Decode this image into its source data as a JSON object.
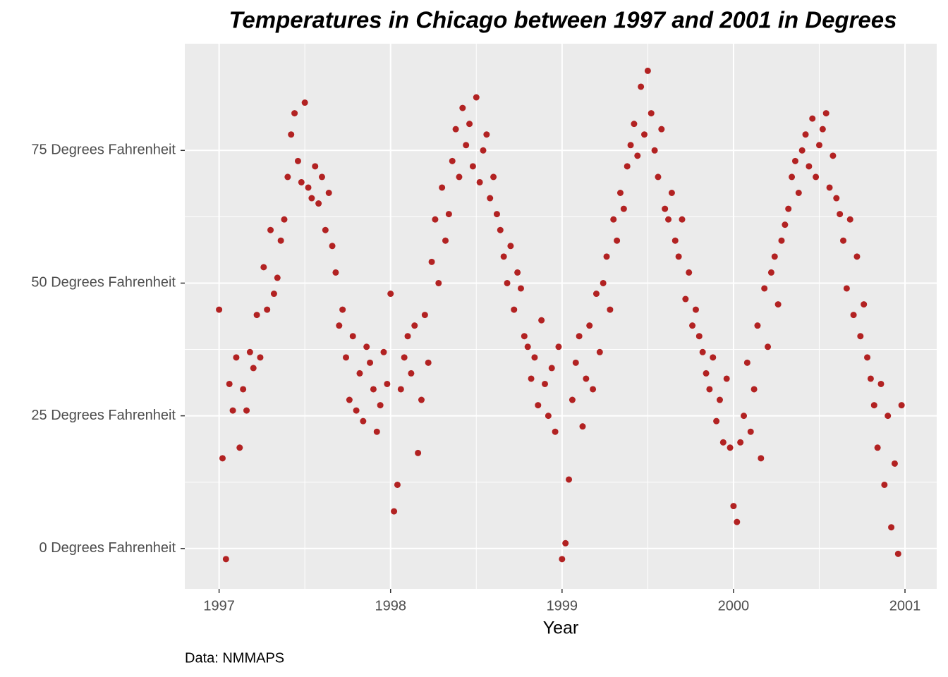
{
  "chart_data": {
    "type": "scatter",
    "title": "Temperatures in Chicago between 1997 and 2001 in Degrees",
    "x_label": "Year",
    "caption": "Data: NMMAPS",
    "color": "#b22222",
    "grid": true,
    "xlim": [
      1996.8,
      2001.185
    ],
    "ylim": [
      -7.6,
      95.1
    ],
    "xticks": [
      1997,
      1998,
      1999,
      2000,
      2001
    ],
    "yticks": [
      {
        "value": 0,
        "label": "0 Degrees Fahrenheit"
      },
      {
        "value": 25,
        "label": "25 Degrees Fahrenheit"
      },
      {
        "value": 50,
        "label": "50 Degrees Fahrenheit"
      },
      {
        "value": 75,
        "label": "75 Degrees Fahrenheit"
      }
    ],
    "x": [
      1997.0,
      1997.02,
      1997.04,
      1997.06,
      1997.08,
      1997.1,
      1997.12,
      1997.14,
      1997.16,
      1997.18,
      1997.2,
      1997.22,
      1997.24,
      1997.26,
      1997.28,
      1997.3,
      1997.32,
      1997.34,
      1997.36,
      1997.38,
      1997.4,
      1997.42,
      1997.44,
      1997.46,
      1997.48,
      1997.5,
      1997.52,
      1997.54,
      1997.56,
      1997.58,
      1997.6,
      1997.62,
      1997.64,
      1997.66,
      1997.68,
      1997.7,
      1997.72,
      1997.74,
      1997.76,
      1997.78,
      1997.8,
      1997.82,
      1997.84,
      1997.86,
      1997.88,
      1997.9,
      1997.92,
      1997.94,
      1997.96,
      1997.98,
      1998.0,
      1998.02,
      1998.04,
      1998.06,
      1998.08,
      1998.1,
      1998.12,
      1998.14,
      1998.16,
      1998.18,
      1998.2,
      1998.22,
      1998.24,
      1998.26,
      1998.28,
      1998.3,
      1998.32,
      1998.34,
      1998.36,
      1998.38,
      1998.4,
      1998.42,
      1998.44,
      1998.46,
      1998.48,
      1998.5,
      1998.52,
      1998.54,
      1998.56,
      1998.58,
      1998.6,
      1998.62,
      1998.64,
      1998.66,
      1998.68,
      1998.7,
      1998.72,
      1998.74,
      1998.76,
      1998.78,
      1998.8,
      1998.82,
      1998.84,
      1998.86,
      1998.88,
      1998.9,
      1998.92,
      1998.94,
      1998.96,
      1998.98,
      1999.0,
      1999.02,
      1999.04,
      1999.06,
      1999.08,
      1999.1,
      1999.12,
      1999.14,
      1999.16,
      1999.18,
      1999.2,
      1999.22,
      1999.24,
      1999.26,
      1999.28,
      1999.3,
      1999.32,
      1999.34,
      1999.36,
      1999.38,
      1999.4,
      1999.42,
      1999.44,
      1999.46,
      1999.48,
      1999.5,
      1999.52,
      1999.54,
      1999.56,
      1999.58,
      1999.6,
      1999.62,
      1999.64,
      1999.66,
      1999.68,
      1999.7,
      1999.72,
      1999.74,
      1999.76,
      1999.78,
      1999.8,
      1999.82,
      1999.84,
      1999.86,
      1999.88,
      1999.9,
      1999.92,
      1999.94,
      1999.96,
      1999.98,
      2000.0,
      2000.02,
      2000.04,
      2000.06,
      2000.08,
      2000.1,
      2000.12,
      2000.14,
      2000.16,
      2000.18,
      2000.2,
      2000.22,
      2000.24,
      2000.26,
      2000.28,
      2000.3,
      2000.32,
      2000.34,
      2000.36,
      2000.38,
      2000.4,
      2000.42,
      2000.44,
      2000.46,
      2000.48,
      2000.5,
      2000.52,
      2000.54,
      2000.56,
      2000.58,
      2000.6,
      2000.62,
      2000.64,
      2000.66,
      2000.68,
      2000.7,
      2000.72,
      2000.74,
      2000.76,
      2000.78,
      2000.8,
      2000.82,
      2000.84,
      2000.86,
      2000.88,
      2000.9,
      2000.92,
      2000.94,
      2000.96,
      2000.98
    ],
    "values": [
      45,
      17,
      -2,
      31,
      26,
      36,
      19,
      30,
      26,
      37,
      34,
      44,
      36,
      53,
      45,
      60,
      48,
      51,
      58,
      62,
      70,
      78,
      82,
      73,
      69,
      84,
      68,
      66,
      72,
      65,
      70,
      60,
      67,
      57,
      52,
      42,
      45,
      36,
      28,
      40,
      26,
      33,
      24,
      38,
      35,
      30,
      22,
      27,
      37,
      31,
      48,
      7,
      12,
      30,
      36,
      40,
      33,
      42,
      18,
      28,
      44,
      35,
      54,
      62,
      50,
      68,
      58,
      63,
      73,
      79,
      70,
      83,
      76,
      80,
      72,
      85,
      69,
      75,
      78,
      66,
      70,
      63,
      60,
      55,
      50,
      57,
      45,
      52,
      49,
      40,
      38,
      32,
      36,
      27,
      43,
      31,
      25,
      34,
      22,
      38,
      -2,
      1,
      13,
      28,
      35,
      40,
      23,
      32,
      42,
      30,
      48,
      37,
      50,
      55,
      45,
      62,
      58,
      67,
      64,
      72,
      76,
      80,
      74,
      87,
      78,
      90,
      82,
      75,
      70,
      79,
      64,
      62,
      67,
      58,
      55,
      62,
      47,
      52,
      42,
      45,
      40,
      37,
      33,
      30,
      36,
      24,
      28,
      20,
      32,
      19,
      8,
      5,
      20,
      25,
      35,
      22,
      30,
      42,
      17,
      49,
      38,
      52,
      55,
      46,
      58,
      61,
      64,
      70,
      73,
      67,
      75,
      78,
      72,
      81,
      70,
      76,
      79,
      82,
      68,
      74,
      66,
      63,
      58,
      49,
      62,
      44,
      55,
      40,
      46,
      36,
      32,
      27,
      19,
      31,
      12,
      25,
      4,
      16,
      -1,
      27
    ]
  }
}
